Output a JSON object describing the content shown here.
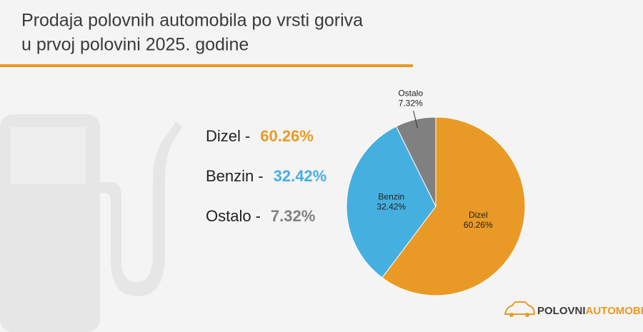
{
  "chart_data": {
    "type": "pie",
    "title": [
      "Prodaja polovnih automobila po vrsti goriva",
      "u prvoj polovini 2025. godine"
    ],
    "categories": [
      "Dizel",
      "Benzin",
      "Ostalo"
    ],
    "values": [
      60.26,
      32.42,
      7.32
    ],
    "value_labels": [
      "60.26%",
      "32.42%",
      "7.32%"
    ],
    "colors": [
      "#e99a26",
      "#45afe0",
      "#808080"
    ],
    "legend_separator": "-",
    "brand": [
      "POLOVNI",
      "AUTOMOBILI"
    ]
  }
}
